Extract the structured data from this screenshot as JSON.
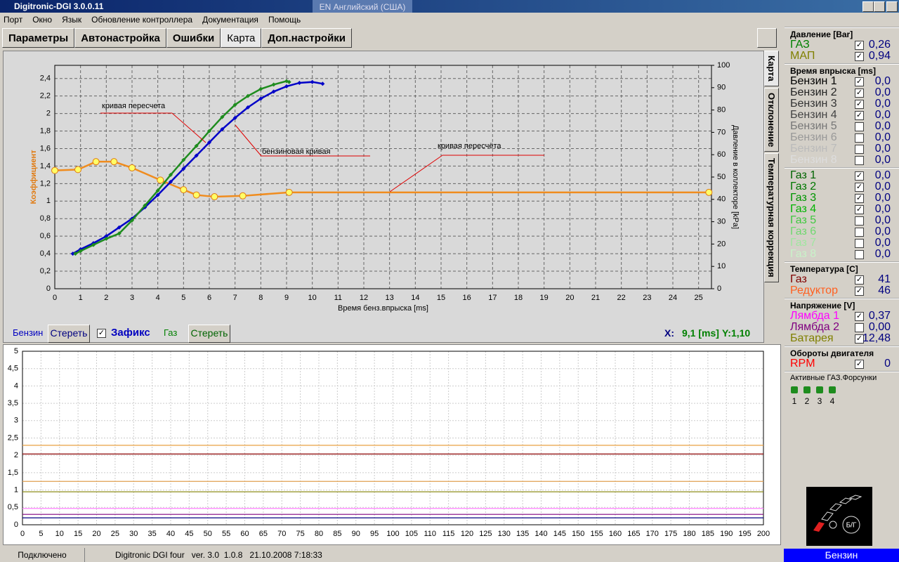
{
  "window": {
    "title": "Digitronic-DGI  3.0.0.11",
    "language": "EN Английский (США)"
  },
  "menu": [
    "Порт",
    "Окно",
    "Язык",
    "Обновление контроллера",
    "Документация",
    "Помощь"
  ],
  "tabs": {
    "items": [
      "Параметры",
      "Автонастройка",
      "Ошибки",
      "Карта",
      "Доп.настройки"
    ],
    "active": 3
  },
  "side_tabs": {
    "items": [
      "Карта",
      "Отклонение",
      "Температурная коррекция"
    ],
    "active": 0
  },
  "chart_data": [
    {
      "type": "line",
      "xlabel": "Время бенз.впрыска [ms]",
      "ylabel": "Коэффициент",
      "y2label": "Давление в коллекторе [kPa]",
      "xlim": [
        0,
        25.5
      ],
      "ylim": [
        0,
        2.55
      ],
      "y2lim": [
        0,
        100
      ],
      "xticks": [
        0,
        1,
        2,
        3,
        4,
        5,
        6,
        7,
        8,
        9,
        10,
        11,
        12,
        13,
        14,
        15,
        16,
        17,
        18,
        19,
        20,
        21,
        22,
        23,
        24,
        25
      ],
      "yticks": [
        0,
        {
          "value": 0.2,
          "label": "0,2"
        },
        {
          "value": 0.4,
          "label": "0,4"
        },
        {
          "value": 0.6,
          "label": "0,6"
        },
        {
          "value": 0.8,
          "label": "0,8"
        },
        1,
        {
          "value": 1.2,
          "label": "1,2"
        },
        {
          "value": 1.4,
          "label": "1,4"
        },
        {
          "value": 1.6,
          "label": "1,6"
        },
        {
          "value": 1.8,
          "label": "1,8"
        },
        2,
        {
          "value": 2.2,
          "label": "2,2"
        },
        {
          "value": 2.4,
          "label": "2,4"
        }
      ],
      "y2ticks": [
        0,
        10,
        20,
        30,
        40,
        50,
        60,
        70,
        80,
        90,
        100
      ],
      "grid": true,
      "annotations": [
        "кривая пересчета",
        "бензиновая кривая",
        "кривая пересчёта"
      ],
      "series": [
        {
          "color": "#f08c1e",
          "marker": "circle",
          "marker_color": "#ffff66",
          "x": [
            0,
            0.9,
            1.6,
            2.3,
            3,
            4.1,
            5,
            5.5,
            6.2,
            7.3,
            9.1,
            25.4
          ],
          "values": [
            1.35,
            1.36,
            1.45,
            1.45,
            1.38,
            1.24,
            1.13,
            1.07,
            1.05,
            1.06,
            1.1,
            1.1
          ]
        },
        {
          "color": "#0000c8",
          "marker": "diamond",
          "marker_color": "#0000c8",
          "x": [
            0.7,
            1,
            1.5,
            2,
            2.5,
            3,
            3.5,
            4,
            4.5,
            5,
            5.5,
            6,
            6.5,
            7,
            7.5,
            8,
            8.5,
            9,
            9.5,
            10,
            10.4
          ],
          "values": [
            0.4,
            0.45,
            0.52,
            0.6,
            0.7,
            0.8,
            0.93,
            1.07,
            1.22,
            1.37,
            1.52,
            1.67,
            1.82,
            1.95,
            2.07,
            2.17,
            2.25,
            2.31,
            2.35,
            2.36,
            2.34
          ]
        },
        {
          "color": "#1e8c1e",
          "marker": "diamond",
          "marker_color": "#1e8c1e",
          "x": [
            0.8,
            1,
            1.5,
            2,
            2.5,
            3,
            3.5,
            4,
            4.5,
            5,
            5.5,
            6,
            6.5,
            7,
            7.5,
            8,
            8.5,
            9,
            9.1
          ],
          "values": [
            0.4,
            0.43,
            0.5,
            0.57,
            0.63,
            0.78,
            0.95,
            1.12,
            1.3,
            1.47,
            1.63,
            1.8,
            1.96,
            2.1,
            2.2,
            2.28,
            2.33,
            2.37,
            2.36
          ]
        }
      ]
    },
    {
      "type": "line",
      "xlim": [
        0,
        200
      ],
      "ylim": [
        0,
        5
      ],
      "xticks": [
        0,
        5,
        10,
        15,
        20,
        25,
        30,
        35,
        40,
        45,
        50,
        55,
        60,
        65,
        70,
        75,
        80,
        85,
        90,
        95,
        100,
        105,
        110,
        115,
        120,
        125,
        130,
        135,
        140,
        145,
        150,
        155,
        160,
        165,
        170,
        175,
        180,
        185,
        190,
        195,
        200
      ],
      "yticks": [
        0,
        {
          "value": 0.5,
          "label": "0,5"
        },
        1,
        {
          "value": 1.5,
          "label": "1,5"
        },
        2,
        {
          "value": 2.5,
          "label": "2,5"
        },
        3,
        {
          "value": 3.5,
          "label": "3,5"
        },
        4,
        {
          "value": 4.5,
          "label": "4,5"
        },
        5
      ],
      "grid": true,
      "x": [
        0,
        200
      ],
      "series": [
        {
          "color": "#e8a040",
          "values": [
            2.29,
            2.29
          ]
        },
        {
          "color": "#8b0000",
          "values": [
            2.04,
            2.04
          ]
        },
        {
          "color": "#e0a050",
          "values": [
            1.25,
            1.25
          ]
        },
        {
          "color": "#808000",
          "values": [
            0.95,
            0.95
          ]
        },
        {
          "color": "#ff80ff",
          "values": [
            0.47,
            0.47
          ]
        },
        {
          "color": "#800080",
          "values": [
            0.3,
            0.3
          ]
        },
        {
          "color": "#000080",
          "values": [
            0.2,
            0.2
          ]
        }
      ]
    }
  ],
  "controls": {
    "petrol_label": "Бензин",
    "clear_petrol": "Стереть",
    "fix_label": "Зафикс",
    "fix_checked": true,
    "gas_label": "Газ",
    "clear_gas": "Стереть",
    "x_label": "X:",
    "x_value": "9,1 [ms]",
    "y_value": "Y:1,10"
  },
  "sidebar": {
    "groups": [
      {
        "title": "Давление [Bar]",
        "rows": [
          {
            "label": "ГАЗ",
            "value": "0,26",
            "checked": true,
            "color": "#008000"
          },
          {
            "label": "МАП",
            "value": "0,94",
            "checked": true,
            "color": "#808000"
          }
        ]
      },
      {
        "title": "Время впрыска [ms]",
        "rows": [
          {
            "label": "Бензин 1",
            "value": "0,0",
            "checked": true,
            "color": "#000000"
          },
          {
            "label": "Бензин 2",
            "value": "0,0",
            "checked": true,
            "color": "#222222"
          },
          {
            "label": "Бензин 3",
            "value": "0,0",
            "checked": true,
            "color": "#333333"
          },
          {
            "label": "Бензин 4",
            "value": "0,0",
            "checked": true,
            "color": "#444444"
          },
          {
            "label": "Бензин 5",
            "value": "0,0",
            "checked": false,
            "color": "#777777"
          },
          {
            "label": "Бензин 6",
            "value": "0,0",
            "checked": false,
            "color": "#999999"
          },
          {
            "label": "Бензин 7",
            "value": "0,0",
            "checked": false,
            "color": "#bbbbbb"
          },
          {
            "label": "Бензин 8",
            "value": "0,0",
            "checked": false,
            "color": "#dddddd"
          }
        ]
      },
      {
        "rows": [
          {
            "label": "Газ 1",
            "value": "0,0",
            "checked": true,
            "color": "#006400"
          },
          {
            "label": "Газ 2",
            "value": "0,0",
            "checked": true,
            "color": "#007800"
          },
          {
            "label": "Газ 3",
            "value": "0,0",
            "checked": true,
            "color": "#009600"
          },
          {
            "label": "Газ 4",
            "value": "0,0",
            "checked": true,
            "color": "#00b400"
          },
          {
            "label": "Газ 5",
            "value": "0,0",
            "checked": false,
            "color": "#40c840"
          },
          {
            "label": "Газ 6",
            "value": "0,0",
            "checked": false,
            "color": "#70d870"
          },
          {
            "label": "Газ 7",
            "value": "0,0",
            "checked": false,
            "color": "#a0e6a0"
          },
          {
            "label": "Газ 8",
            "value": "0,0",
            "checked": false,
            "color": "#c8f2c8"
          }
        ]
      },
      {
        "title": "Температура  [C]",
        "rows": [
          {
            "label": "Газ",
            "value": "41",
            "checked": true,
            "color": "#800000"
          },
          {
            "label": "Редуктор",
            "value": "46",
            "checked": true,
            "color": "#ff6020"
          }
        ]
      },
      {
        "title": "Напряжение [V]",
        "rows": [
          {
            "label": "Лямбда 1",
            "value": "0,37",
            "checked": true,
            "color": "#ff00ff"
          },
          {
            "label": "Лямбда 2",
            "value": "0,00",
            "checked": false,
            "color": "#800080"
          },
          {
            "label": "Батарея",
            "value": "12,48",
            "checked": true,
            "color": "#808000"
          }
        ]
      },
      {
        "title": "Обороты двигателя",
        "rows": [
          {
            "label": "RPM",
            "value": "0",
            "checked": true,
            "color": "#ff0000"
          }
        ]
      }
    ],
    "injectors": {
      "title": "Активные ГАЗ.Форсунки",
      "labels": [
        "1",
        "2",
        "3",
        "4"
      ]
    },
    "switch_label": "Б/Г",
    "mode": "Бензин"
  },
  "status": {
    "connection": "Подключено",
    "info": "Digitronic DGI four   ver. 3.0  1.0.8   21.10.2008 7:18:33"
  }
}
